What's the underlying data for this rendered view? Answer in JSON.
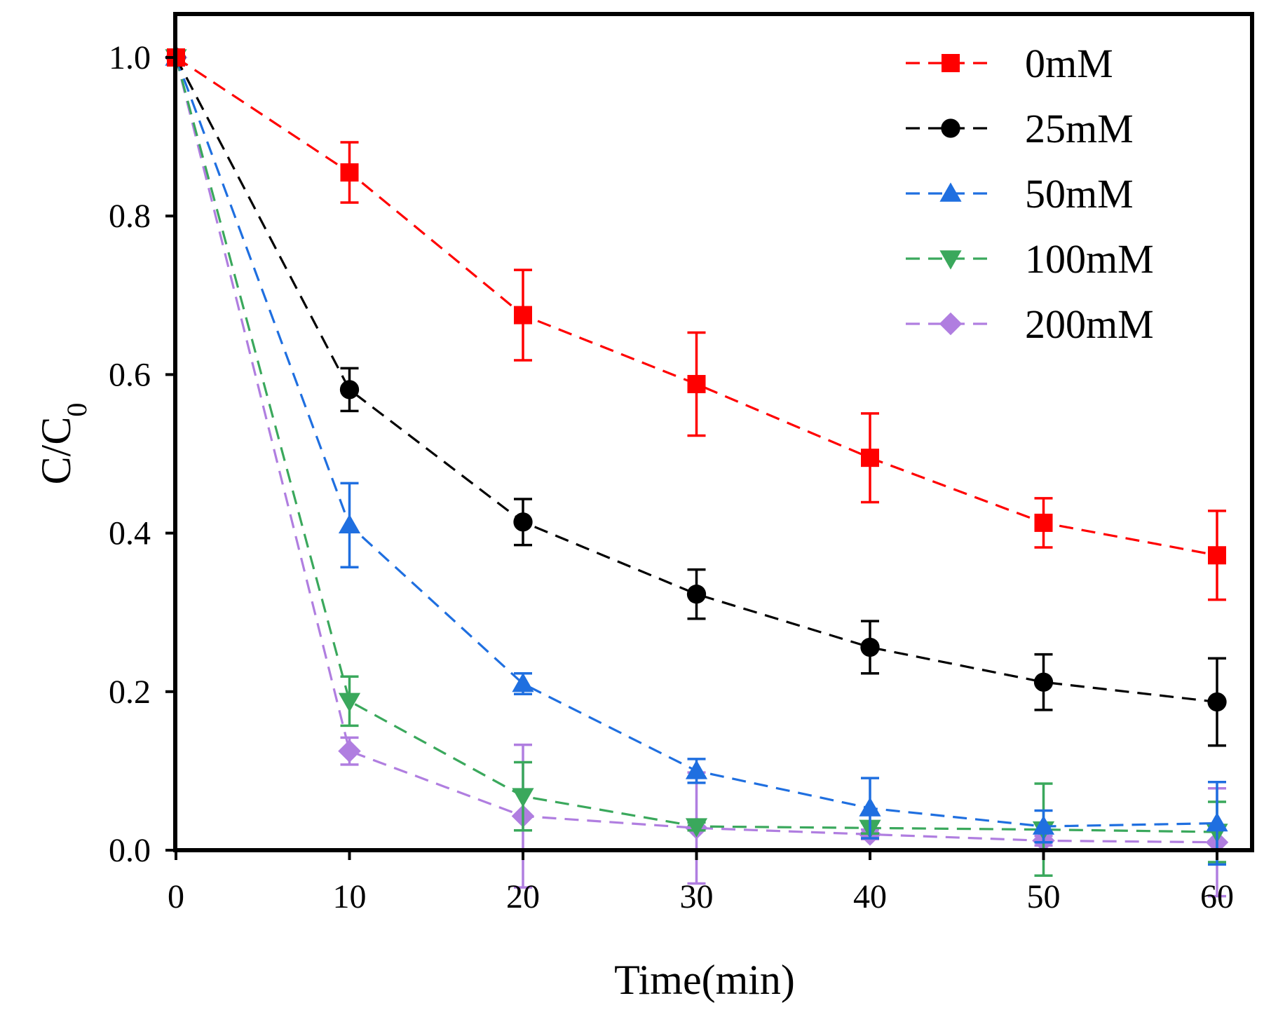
{
  "chart_data": {
    "type": "line",
    "title": "",
    "xlabel": "Time(min)",
    "ylabel_main": "C/C",
    "ylabel_sub": "0",
    "xlim": [
      0,
      61.5
    ],
    "ylim": [
      0,
      1.05
    ],
    "xticks": [
      0,
      10,
      20,
      30,
      40,
      50,
      60
    ],
    "xtick_labels": [
      "0",
      "10",
      "20",
      "30",
      "40",
      "50",
      "60"
    ],
    "yticks": [
      0,
      0.2,
      0.4,
      0.6,
      0.8,
      1.0
    ],
    "ytick_labels": [
      "0.0",
      "0.2",
      "0.4",
      "0.6",
      "0.8",
      "1.0"
    ],
    "legend_position": "top-right",
    "grid": false,
    "x": [
      0,
      10,
      20,
      30,
      40,
      50,
      60
    ],
    "series": [
      {
        "name": "0mM",
        "color": "#ff0000",
        "marker": "square",
        "values": [
          1.0,
          0.855,
          0.675,
          0.588,
          0.495,
          0.413,
          0.372
        ],
        "errors": [
          0,
          0.038,
          0.057,
          0.065,
          0.056,
          0.031,
          0.056
        ]
      },
      {
        "name": "25mM",
        "color": "#000000",
        "marker": "circle",
        "values": [
          1.0,
          0.581,
          0.414,
          0.323,
          0.256,
          0.212,
          0.187
        ],
        "errors": [
          0,
          0.027,
          0.029,
          0.031,
          0.033,
          0.035,
          0.055
        ]
      },
      {
        "name": "50mM",
        "color": "#1f6fe0",
        "marker": "triangle-up",
        "values": [
          1.0,
          0.41,
          0.21,
          0.1,
          0.053,
          0.03,
          0.034
        ],
        "errors": [
          0,
          0.053,
          0.013,
          0.015,
          0.038,
          0.02,
          0.052
        ]
      },
      {
        "name": "100mM",
        "color": "#3aa85c",
        "marker": "triangle-down",
        "values": [
          1.0,
          0.188,
          0.068,
          0.03,
          0.028,
          0.026,
          0.023
        ],
        "errors": [
          0,
          0.031,
          0.043,
          0.005,
          0.007,
          0.058,
          0.038
        ]
      },
      {
        "name": "200mM",
        "color": "#b07ee0",
        "marker": "diamond",
        "values": [
          1.0,
          0.125,
          0.043,
          0.028,
          0.02,
          0.012,
          0.01
        ],
        "errors": [
          0,
          0.017,
          0.09,
          0.07,
          0.006,
          0.006,
          0.068
        ]
      }
    ]
  }
}
